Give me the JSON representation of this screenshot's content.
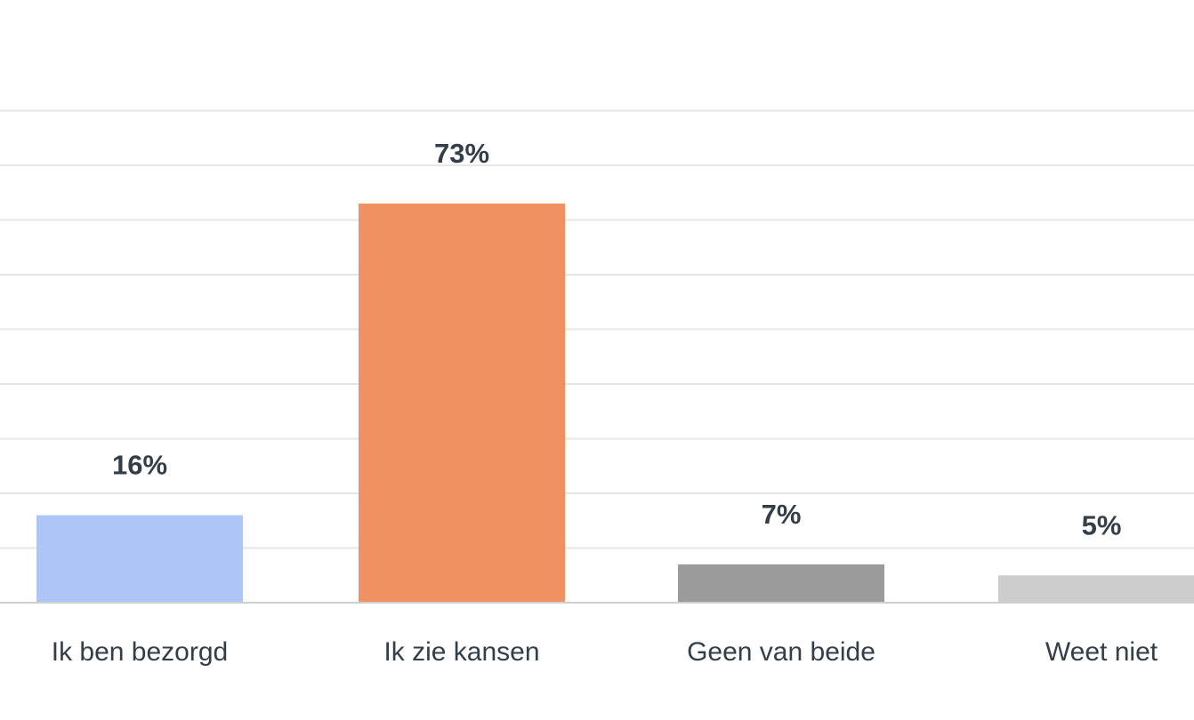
{
  "chart_data": {
    "type": "bar",
    "categories": [
      "Ik ben bezorgd",
      "Ik zie kansen",
      "Geen van beide",
      "Weet niet"
    ],
    "values": [
      16,
      73,
      7,
      5
    ],
    "value_labels": [
      "16%",
      "73%",
      "7%",
      "5%"
    ],
    "colors": [
      "#aec6f7",
      "#ef9160",
      "#9b9b9b",
      "#cdcdcd"
    ],
    "ylim": [
      0,
      90
    ],
    "grid": true,
    "title": "",
    "xlabel": "",
    "ylabel": ""
  }
}
